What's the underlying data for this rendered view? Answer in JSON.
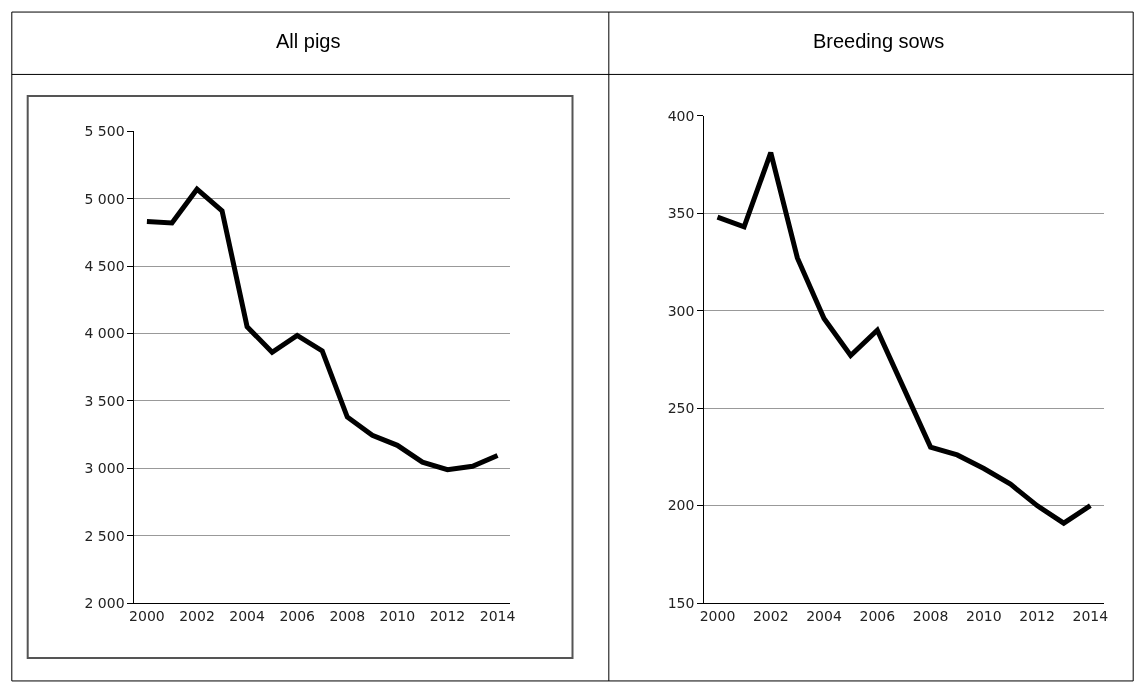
{
  "chart_data": [
    {
      "type": "line",
      "title": "All pigs",
      "categories": [
        "2000",
        null,
        "2002",
        null,
        "2004",
        null,
        "2006",
        null,
        "2008",
        null,
        "2010",
        null,
        "2012",
        null,
        "2014"
      ],
      "series": [
        {
          "color": "#000000",
          "values": [
            4830,
            4820,
            5070,
            4910,
            4050,
            3860,
            3985,
            3870,
            3380,
            3245,
            3170,
            3045,
            2990,
            3015,
            3095
          ]
        }
      ],
      "ylim": [
        2000,
        5500
      ],
      "yticks": [
        {
          "value": 2000,
          "label": "2 000"
        },
        {
          "value": 2500,
          "label": "2 500"
        },
        {
          "value": 3000,
          "label": "3 000"
        },
        {
          "value": 3500,
          "label": "3 500"
        },
        {
          "value": 4000,
          "label": "4 000"
        },
        {
          "value": 4500,
          "label": "4 500"
        },
        {
          "value": 5000,
          "label": "5 000"
        },
        {
          "value": 5500,
          "label": "5 500"
        }
      ],
      "grid": "y",
      "marker": "none",
      "line_style": "solid"
    },
    {
      "type": "line",
      "title": "Breeding sows",
      "categories": [
        "2000",
        null,
        "2002",
        null,
        "2004",
        null,
        "2006",
        null,
        "2008",
        null,
        "2010",
        null,
        "2012",
        null,
        "2014"
      ],
      "series": [
        {
          "color": "#000000",
          "values": [
            348,
            343,
            381,
            327,
            296,
            277,
            290,
            260,
            230,
            226,
            219,
            211,
            200,
            191,
            200
          ]
        }
      ],
      "ylim": [
        150,
        400
      ],
      "yticks": [
        150,
        200,
        250,
        300,
        350,
        400
      ],
      "grid": "y",
      "marker": "none",
      "line_style": "solid"
    }
  ]
}
